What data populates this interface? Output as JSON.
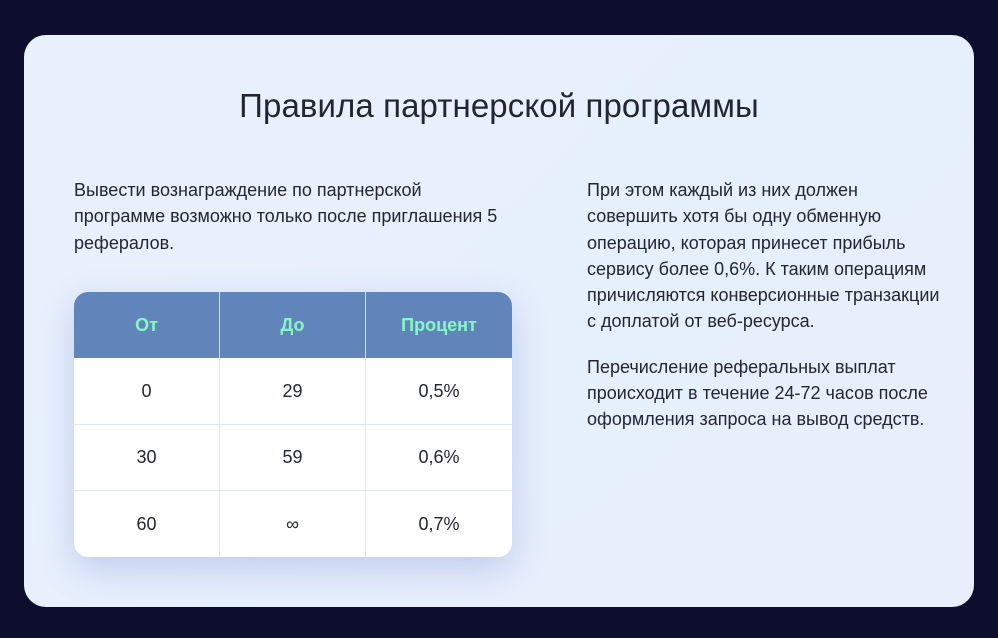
{
  "title": "Правила партнерской программы",
  "left_text": "Вывести вознаграждение по партнерской программе возможно только после приглашения 5 рефералов.",
  "right_paragraphs": [
    "При этом каждый из них должен совершить хотя бы одну обменную операцию, которая принесет прибыль сервису более 0,6%. К таким операциям причисляются конверсионные транзакции с доплатой от веб-ресурса.",
    "Перечисление реферальных выплат происходит в течение 24-72 часов после оформления запроса на вывод средств."
  ],
  "table": {
    "headers": [
      "От",
      "До",
      "Процент"
    ],
    "rows": [
      [
        "0",
        "29",
        "0,5%"
      ],
      [
        "30",
        "59",
        "0,6%"
      ],
      [
        "60",
        "∞",
        "0,7%"
      ]
    ]
  },
  "colors": {
    "page_background": "#0d0e2e",
    "card_background": "#e9f1fc",
    "header_background": "#6185bb",
    "header_text": "#86f7c4"
  }
}
